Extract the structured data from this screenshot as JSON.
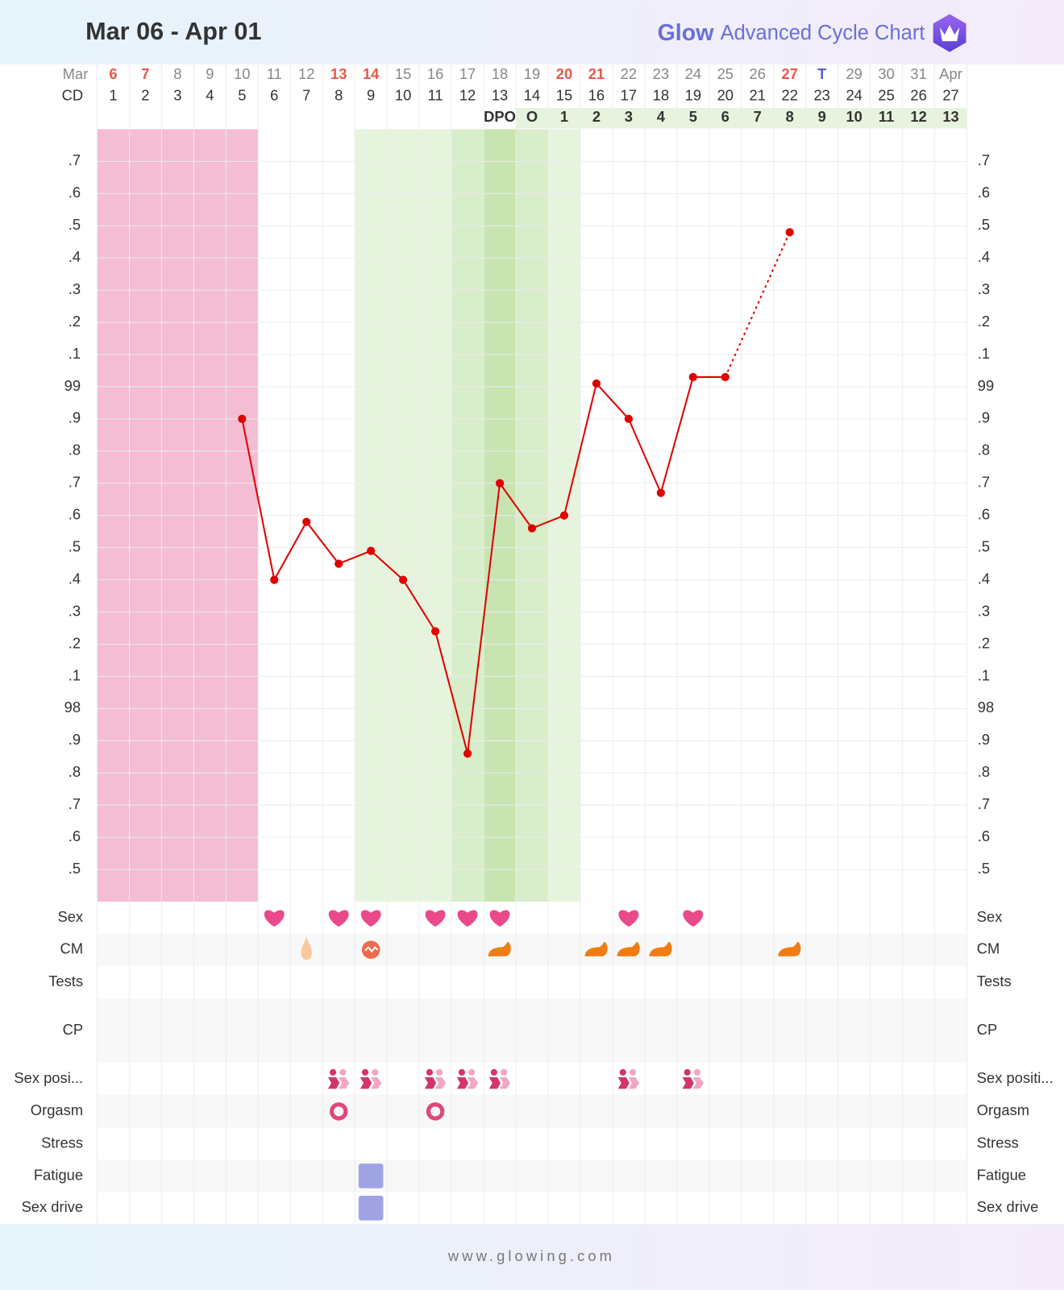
{
  "header": {
    "title": "Mar 06 - Apr 01",
    "brand": "Glow",
    "subtitle": "Advanced Cycle Chart"
  },
  "chart_data": {
    "type": "line",
    "month_label": "Mar",
    "categories": [
      "6",
      "7",
      "8",
      "9",
      "10",
      "11",
      "12",
      "13",
      "14",
      "15",
      "16",
      "17",
      "18",
      "19",
      "20",
      "21",
      "22",
      "23",
      "24",
      "25",
      "26",
      "27",
      "T",
      "29",
      "30",
      "31",
      "Apr"
    ],
    "category_colors": [
      "#e8574a",
      "#e8574a",
      "#888888",
      "#888888",
      "#888888",
      "#888888",
      "#888888",
      "#e8574a",
      "#e8574a",
      "#888888",
      "#888888",
      "#888888",
      "#888888",
      "#888888",
      "#e8574a",
      "#e8574a",
      "#888888",
      "#888888",
      "#888888",
      "#888888",
      "#888888",
      "#e8574a",
      "#5b5fc7",
      "#888888",
      "#888888",
      "#888888",
      "#888888"
    ],
    "cd_label": "CD",
    "cd": [
      1,
      2,
      3,
      4,
      5,
      6,
      7,
      8,
      9,
      10,
      11,
      12,
      13,
      14,
      15,
      16,
      17,
      18,
      19,
      20,
      21,
      22,
      23,
      24,
      25,
      26,
      27
    ],
    "dpo_label": "DPO",
    "dpo": [
      null,
      null,
      null,
      null,
      null,
      null,
      null,
      null,
      null,
      null,
      null,
      null,
      null,
      "O",
      1,
      2,
      3,
      4,
      5,
      6,
      7,
      8,
      9,
      10,
      11,
      12,
      13
    ],
    "values": [
      null,
      null,
      null,
      null,
      98.9,
      98.4,
      98.58,
      98.45,
      98.49,
      98.4,
      98.24,
      97.86,
      98.7,
      98.56,
      98.6,
      99.01,
      98.9,
      98.67,
      99.03,
      99.03,
      null,
      99.48,
      null,
      null,
      null,
      null,
      null
    ],
    "color": "#e00000",
    "column_shading": [
      "#f4bdd3",
      "#f4bdd3",
      "#f4bdd3",
      "#f4bdd3",
      "#f4bdd3",
      null,
      null,
      null,
      "#e7f4dd",
      "#e7f4dd",
      "#e7f4dd",
      "#d8edc9",
      "#c7e4b1",
      "#d8edc9",
      "#e7f4dd",
      null,
      null,
      null,
      null,
      null,
      null,
      null,
      null,
      null,
      null,
      null,
      null
    ],
    "ylim": [
      97.4,
      99.8
    ],
    "yticks": [
      {
        "value": 97.5,
        "label": ".5"
      },
      {
        "value": 97.6,
        "label": ".6"
      },
      {
        "value": 97.7,
        "label": ".7"
      },
      {
        "value": 97.8,
        "label": ".8"
      },
      {
        "value": 97.9,
        "label": ".9"
      },
      98,
      {
        "value": 98.1,
        "label": ".1"
      },
      {
        "value": 98.2,
        "label": ".2"
      },
      {
        "value": 98.3,
        "label": ".3"
      },
      {
        "value": 98.4,
        "label": ".4"
      },
      {
        "value": 98.5,
        "label": ".5"
      },
      {
        "value": 98.6,
        "label": ".6"
      },
      {
        "value": 98.7,
        "label": ".7"
      },
      {
        "value": 98.8,
        "label": ".8"
      },
      {
        "value": 98.9,
        "label": ".9"
      },
      99,
      {
        "value": 99.1,
        "label": ".1"
      },
      {
        "value": 99.2,
        "label": ".2"
      },
      {
        "value": 99.3,
        "label": ".3"
      },
      {
        "value": 99.4,
        "label": ".4"
      },
      {
        "value": 99.5,
        "label": ".5"
      },
      {
        "value": 99.6,
        "label": ".6"
      },
      {
        "value": 99.7,
        "label": ".7"
      }
    ],
    "grid": true
  },
  "log_rows": [
    {
      "label": "Sex",
      "right_label": "Sex"
    },
    {
      "label": "CM",
      "right_label": "CM"
    },
    {
      "label": "Tests",
      "right_label": "Tests"
    },
    {
      "label": "CP",
      "right_label": "CP"
    },
    {
      "label": "Sex posi...",
      "right_label": "Sex positi..."
    },
    {
      "label": "Orgasm",
      "right_label": "Orgasm"
    },
    {
      "label": "Stress",
      "right_label": "Stress"
    },
    {
      "label": "Fatigue",
      "right_label": "Fatigue"
    },
    {
      "label": "Sex drive",
      "right_label": "Sex drive"
    }
  ],
  "footer": {
    "url": "www.glowing.com"
  }
}
